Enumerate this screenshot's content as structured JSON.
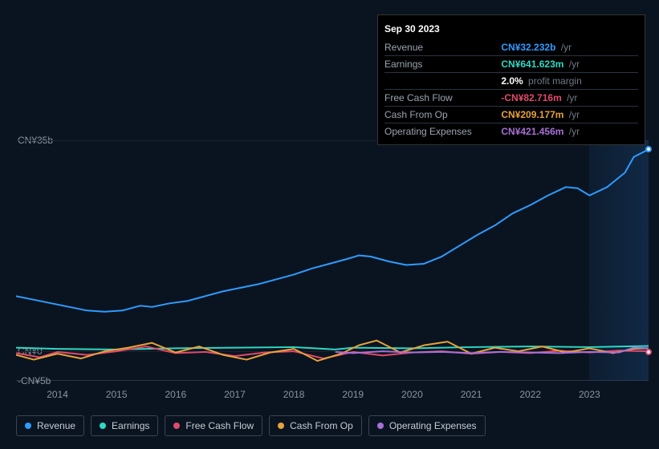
{
  "tooltip": {
    "date": "Sep 30 2023",
    "rows": [
      {
        "label": "Revenue",
        "value": "CN¥32.232b",
        "unit": "/yr",
        "color": "#2f9bff"
      },
      {
        "label": "Earnings",
        "value": "CN¥641.623m",
        "unit": "/yr",
        "color": "#2ed9c3"
      },
      {
        "label": "",
        "value": "2.0%",
        "unit": "profit margin",
        "color": "#ffffff"
      },
      {
        "label": "Free Cash Flow",
        "value": "-CN¥82.716m",
        "unit": "/yr",
        "color": "#e04a6b"
      },
      {
        "label": "Cash From Op",
        "value": "CN¥209.177m",
        "unit": "/yr",
        "color": "#e6a23c"
      },
      {
        "label": "Operating Expenses",
        "value": "CN¥421.456m",
        "unit": "/yr",
        "color": "#a86fd8"
      }
    ]
  },
  "chart": {
    "type": "line",
    "background_color": "#0a1420",
    "grid_color": "#1a2430",
    "axis_text_color": "#8a93a0",
    "ylim": [
      -5,
      35
    ],
    "yticks": [
      {
        "v": 35,
        "label": "CN¥35b"
      },
      {
        "v": 0,
        "label": "CN¥0"
      },
      {
        "v": -5,
        "label": "-CN¥5b"
      }
    ],
    "xrange": [
      2013.3,
      2024.0
    ],
    "xticks": [
      2014,
      2015,
      2016,
      2017,
      2018,
      2019,
      2020,
      2021,
      2022,
      2023
    ],
    "forecast_start_x": 2023.0,
    "line_width": 2,
    "series": [
      {
        "name": "Revenue",
        "color": "#2f9bff",
        "points": [
          [
            2013.3,
            9.0
          ],
          [
            2013.6,
            8.4
          ],
          [
            2013.9,
            7.8
          ],
          [
            2014.2,
            7.2
          ],
          [
            2014.5,
            6.6
          ],
          [
            2014.8,
            6.4
          ],
          [
            2015.1,
            6.6
          ],
          [
            2015.4,
            7.4
          ],
          [
            2015.6,
            7.2
          ],
          [
            2015.9,
            7.8
          ],
          [
            2016.2,
            8.2
          ],
          [
            2016.5,
            9.0
          ],
          [
            2016.8,
            9.8
          ],
          [
            2017.1,
            10.4
          ],
          [
            2017.4,
            11.0
          ],
          [
            2017.7,
            11.8
          ],
          [
            2018.0,
            12.6
          ],
          [
            2018.3,
            13.6
          ],
          [
            2018.6,
            14.4
          ],
          [
            2018.9,
            15.2
          ],
          [
            2019.1,
            15.8
          ],
          [
            2019.3,
            15.6
          ],
          [
            2019.6,
            14.8
          ],
          [
            2019.9,
            14.2
          ],
          [
            2020.2,
            14.4
          ],
          [
            2020.5,
            15.6
          ],
          [
            2020.8,
            17.4
          ],
          [
            2021.1,
            19.2
          ],
          [
            2021.4,
            20.8
          ],
          [
            2021.7,
            22.8
          ],
          [
            2022.0,
            24.2
          ],
          [
            2022.3,
            25.8
          ],
          [
            2022.6,
            27.2
          ],
          [
            2022.8,
            27.0
          ],
          [
            2023.0,
            25.8
          ],
          [
            2023.3,
            27.2
          ],
          [
            2023.6,
            29.6
          ],
          [
            2023.75,
            32.232
          ],
          [
            2024.0,
            33.5
          ]
        ],
        "end_circle": true
      },
      {
        "name": "Earnings",
        "color": "#2ed9c3",
        "points": [
          [
            2013.3,
            0.4
          ],
          [
            2014.0,
            0.2
          ],
          [
            2015.0,
            0.1
          ],
          [
            2016.0,
            0.3
          ],
          [
            2017.0,
            0.4
          ],
          [
            2018.0,
            0.5
          ],
          [
            2018.7,
            0.1
          ],
          [
            2019.0,
            0.4
          ],
          [
            2020.0,
            0.3
          ],
          [
            2021.0,
            0.5
          ],
          [
            2022.0,
            0.6
          ],
          [
            2023.0,
            0.5
          ],
          [
            2023.75,
            0.64
          ],
          [
            2024.0,
            0.7
          ]
        ]
      },
      {
        "name": "Free Cash Flow",
        "color": "#e04a6b",
        "points": [
          [
            2013.3,
            -0.5
          ],
          [
            2013.7,
            -1.2
          ],
          [
            2014.0,
            -0.3
          ],
          [
            2014.5,
            -0.8
          ],
          [
            2015.0,
            -0.2
          ],
          [
            2015.5,
            0.6
          ],
          [
            2016.0,
            -0.5
          ],
          [
            2016.5,
            -0.3
          ],
          [
            2017.0,
            -1.0
          ],
          [
            2017.5,
            -0.4
          ],
          [
            2018.0,
            -0.2
          ],
          [
            2018.5,
            -1.4
          ],
          [
            2019.0,
            -0.3
          ],
          [
            2019.5,
            -0.9
          ],
          [
            2020.0,
            -0.4
          ],
          [
            2020.5,
            -0.2
          ],
          [
            2021.0,
            -0.6
          ],
          [
            2021.5,
            -0.3
          ],
          [
            2022.0,
            -0.5
          ],
          [
            2022.5,
            -0.1
          ],
          [
            2023.0,
            -0.4
          ],
          [
            2023.5,
            -0.08
          ],
          [
            2024.0,
            -0.2
          ]
        ],
        "end_circle": true
      },
      {
        "name": "Cash From Op",
        "color": "#e6a23c",
        "points": [
          [
            2013.3,
            -0.8
          ],
          [
            2013.6,
            -1.6
          ],
          [
            2014.0,
            -0.6
          ],
          [
            2014.4,
            -1.4
          ],
          [
            2014.8,
            -0.2
          ],
          [
            2015.2,
            0.4
          ],
          [
            2015.6,
            1.2
          ],
          [
            2016.0,
            -0.4
          ],
          [
            2016.4,
            0.6
          ],
          [
            2016.8,
            -0.8
          ],
          [
            2017.2,
            -1.6
          ],
          [
            2017.6,
            -0.4
          ],
          [
            2018.0,
            0.2
          ],
          [
            2018.4,
            -1.8
          ],
          [
            2018.8,
            -0.6
          ],
          [
            2019.1,
            0.8
          ],
          [
            2019.4,
            1.6
          ],
          [
            2019.8,
            -0.4
          ],
          [
            2020.2,
            0.8
          ],
          [
            2020.6,
            1.4
          ],
          [
            2021.0,
            -0.6
          ],
          [
            2021.4,
            0.4
          ],
          [
            2021.8,
            -0.2
          ],
          [
            2022.2,
            0.6
          ],
          [
            2022.6,
            -0.4
          ],
          [
            2023.0,
            0.3
          ],
          [
            2023.4,
            -0.5
          ],
          [
            2023.75,
            0.21
          ],
          [
            2024.0,
            0.3
          ]
        ]
      },
      {
        "name": "Operating Expenses",
        "color": "#a86fd8",
        "points": [
          [
            2018.7,
            -0.3
          ],
          [
            2019.0,
            -0.5
          ],
          [
            2019.5,
            -0.2
          ],
          [
            2020.0,
            -0.4
          ],
          [
            2020.5,
            -0.3
          ],
          [
            2021.0,
            -0.5
          ],
          [
            2021.5,
            -0.3
          ],
          [
            2022.0,
            -0.4
          ],
          [
            2022.5,
            -0.5
          ],
          [
            2023.0,
            -0.3
          ],
          [
            2023.5,
            -0.4
          ],
          [
            2023.75,
            0.42
          ],
          [
            2024.0,
            0.3
          ]
        ]
      }
    ]
  },
  "legend": [
    {
      "label": "Revenue",
      "color": "#2f9bff"
    },
    {
      "label": "Earnings",
      "color": "#2ed9c3"
    },
    {
      "label": "Free Cash Flow",
      "color": "#e04a6b"
    },
    {
      "label": "Cash From Op",
      "color": "#e6a23c"
    },
    {
      "label": "Operating Expenses",
      "color": "#a86fd8"
    }
  ]
}
